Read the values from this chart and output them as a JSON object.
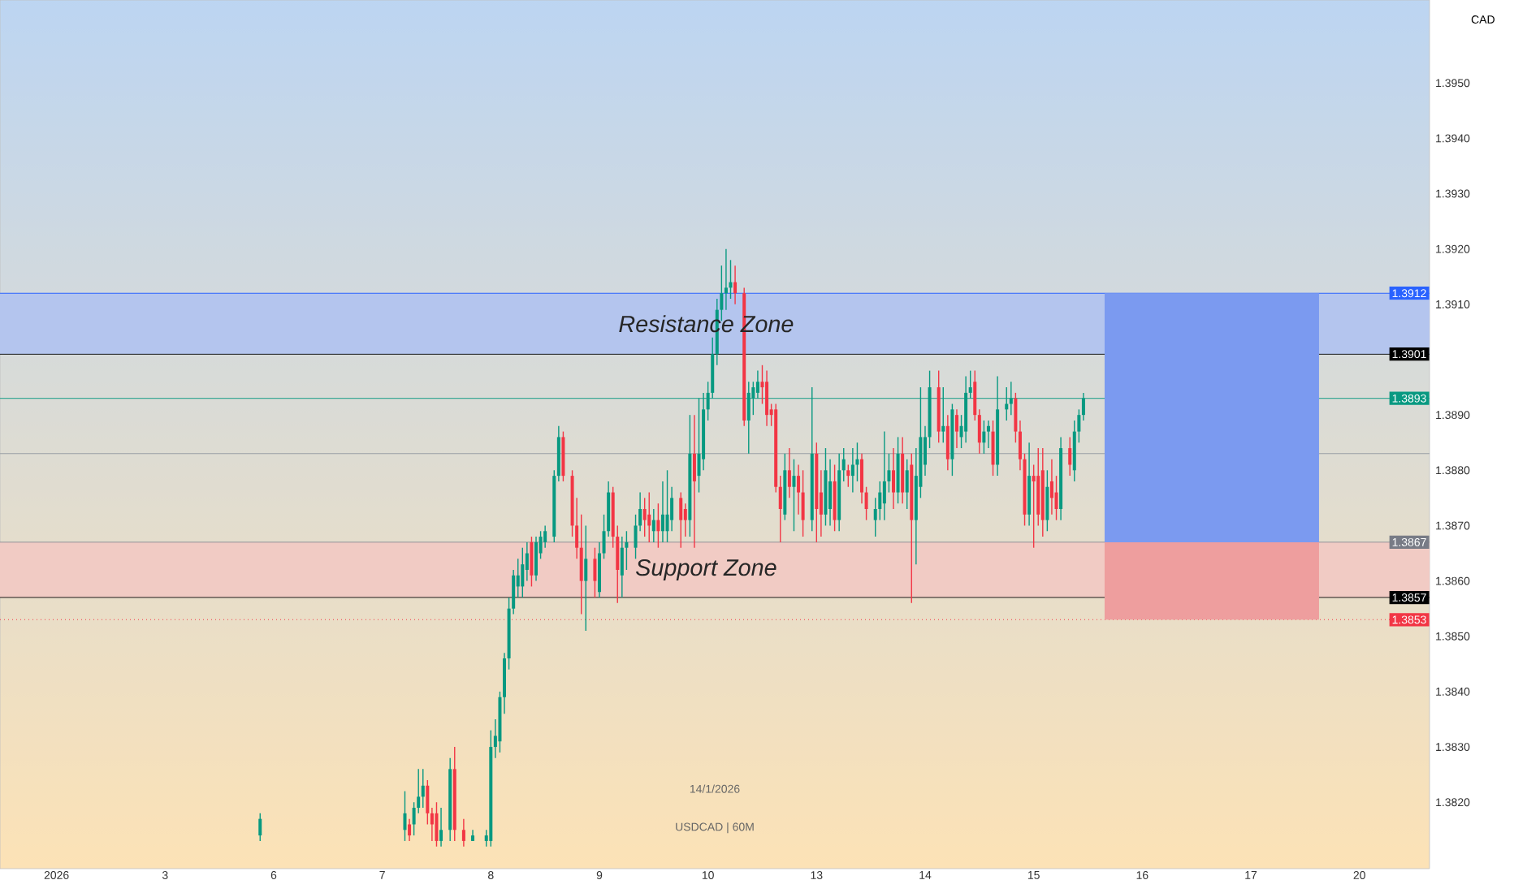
{
  "chart_data": {
    "type": "candlestick",
    "ylabel": "CAD",
    "categories": [
      null,
      null,
      null,
      null,
      null,
      null,
      null,
      null,
      null,
      null,
      null,
      null,
      "2026",
      null,
      null,
      null,
      null,
      null,
      null,
      null,
      null,
      null,
      null,
      null,
      null,
      null,
      null,
      null,
      null,
      null,
      null,
      null,
      null,
      null,
      null,
      null,
      "3",
      null,
      null,
      null,
      null,
      null,
      null,
      null,
      null,
      null,
      null,
      null,
      null,
      null,
      null,
      null,
      null,
      null,
      null,
      null,
      null,
      null,
      null,
      null,
      "6",
      null,
      null,
      null,
      null,
      null,
      null,
      null,
      null,
      null,
      null,
      null,
      null,
      null,
      null,
      null,
      null,
      null,
      null,
      null,
      null,
      null,
      null,
      null,
      "7",
      null,
      null,
      null,
      null,
      null,
      null,
      null,
      null,
      null,
      null,
      null,
      null,
      null,
      null,
      null,
      null,
      null,
      null,
      null,
      null,
      null,
      null,
      null,
      "8",
      null,
      null,
      null,
      null,
      null,
      null,
      null,
      null,
      null,
      null,
      null,
      null,
      null,
      null,
      null,
      null,
      null,
      null,
      null,
      null,
      null,
      null,
      null,
      "9",
      null,
      null,
      null,
      null,
      null,
      null,
      null,
      null,
      null,
      null,
      null,
      null,
      null,
      null,
      null,
      null,
      null,
      null,
      null,
      null,
      null,
      null,
      null,
      "10",
      null,
      null,
      null,
      null,
      null,
      null,
      null,
      null,
      null,
      null,
      null,
      null,
      null,
      null,
      null,
      null,
      null,
      null,
      null,
      null,
      null,
      null,
      null,
      "13",
      null,
      null,
      null,
      null,
      null,
      null,
      null,
      null,
      null,
      null,
      null,
      null,
      null,
      null,
      null,
      null,
      null,
      null,
      null,
      null,
      null,
      null,
      null,
      "14",
      null,
      null,
      null,
      null,
      null,
      null,
      null,
      null,
      null,
      null,
      null,
      null,
      null,
      null,
      null,
      null,
      null,
      null,
      null,
      null,
      null,
      null,
      null,
      "15",
      null,
      null,
      null,
      null,
      null,
      null,
      null,
      null,
      null,
      null,
      null,
      null,
      null,
      null,
      null,
      null,
      null,
      null,
      null,
      null,
      null,
      null,
      null,
      "16",
      null,
      null,
      null,
      null,
      null,
      null,
      null,
      null,
      null,
      null,
      null,
      null,
      null,
      null,
      null,
      null,
      null,
      null,
      null,
      null,
      null,
      null,
      null,
      "17",
      null,
      null,
      null,
      null,
      null,
      null,
      null,
      null,
      null,
      null,
      null,
      null,
      null,
      null,
      null,
      null,
      null,
      null,
      null,
      null,
      null,
      null,
      null,
      "20",
      null,
      null,
      null,
      null,
      null,
      null,
      null,
      null,
      null,
      null,
      null,
      null,
      null,
      null,
      null
    ],
    "ohlc": [
      null,
      null,
      null,
      null,
      null,
      null,
      null,
      null,
      null,
      null,
      null,
      null,
      null,
      null,
      null,
      null,
      null,
      null,
      null,
      null,
      null,
      null,
      null,
      null,
      null,
      null,
      null,
      null,
      null,
      null,
      null,
      null,
      null,
      null,
      null,
      null,
      null,
      null,
      null,
      null,
      null,
      null,
      null,
      null,
      null,
      null,
      null,
      null,
      null,
      null,
      null,
      null,
      null,
      null,
      null,
      null,
      null,
      [
        1.3814,
        1.3818,
        1.3813,
        1.3817
      ],
      null,
      null,
      null,
      null,
      null,
      null,
      null,
      null,
      null,
      null,
      null,
      null,
      null,
      null,
      null,
      null,
      null,
      null,
      null,
      null,
      null,
      null,
      null,
      null,
      null,
      null,
      null,
      null,
      null,
      null,
      null,
      [
        1.3815,
        1.3822,
        1.3813,
        1.3818
      ],
      [
        1.3816,
        1.3817,
        1.3813,
        1.3814
      ],
      [
        1.3816,
        1.382,
        1.3814,
        1.3819
      ],
      [
        1.3819,
        1.3826,
        1.3818,
        1.3821
      ],
      [
        1.3821,
        1.3826,
        1.3819,
        1.3823
      ],
      [
        1.3823,
        1.3824,
        1.3816,
        1.3818
      ],
      [
        1.3818,
        1.3819,
        1.3813,
        1.3816
      ],
      [
        1.3818,
        1.382,
        1.3812,
        1.3813
      ],
      [
        1.3813,
        1.3819,
        1.3812,
        1.3815
      ],
      null,
      [
        1.3815,
        1.3828,
        1.3813,
        1.3826
      ],
      [
        1.3826,
        1.383,
        1.3813,
        1.3815
      ],
      null,
      [
        1.3815,
        1.3817,
        1.3812,
        1.3813
      ],
      null,
      [
        1.3813,
        1.3815,
        1.3813,
        1.3814
      ],
      null,
      null,
      [
        1.3813,
        1.3815,
        1.3812,
        1.3814
      ],
      [
        1.3813,
        1.3833,
        1.3812,
        1.383
      ],
      [
        1.383,
        1.3835,
        1.3828,
        1.3832
      ],
      [
        1.3831,
        1.384,
        1.3829,
        1.3839
      ],
      [
        1.3839,
        1.3847,
        1.3836,
        1.3846
      ],
      [
        1.3846,
        1.3857,
        1.3844,
        1.3855
      ],
      [
        1.3855,
        1.3862,
        1.3854,
        1.3861
      ],
      [
        1.3859,
        1.3864,
        1.3857,
        1.3861
      ],
      [
        1.3859,
        1.3866,
        1.3857,
        1.3863
      ],
      [
        1.3862,
        1.3867,
        1.386,
        1.3865
      ],
      [
        1.3867,
        1.3868,
        1.3859,
        1.3861
      ],
      [
        1.3861,
        1.3868,
        1.386,
        1.3867
      ],
      [
        1.3865,
        1.3869,
        1.3864,
        1.3868
      ],
      [
        1.3867,
        1.387,
        1.3866,
        1.3869
      ],
      null,
      [
        1.3868,
        1.388,
        1.3867,
        1.3879
      ],
      [
        1.3879,
        1.3888,
        1.3878,
        1.3886
      ],
      [
        1.3886,
        1.3887,
        1.3878,
        1.3879
      ],
      null,
      [
        1.3879,
        1.388,
        1.3868,
        1.387
      ],
      [
        1.387,
        1.3875,
        1.3864,
        1.3866
      ],
      [
        1.3866,
        1.3872,
        1.3854,
        1.386
      ],
      [
        1.386,
        1.387,
        1.3851,
        1.3864
      ],
      null,
      [
        1.3864,
        1.3866,
        1.3857,
        1.386
      ],
      [
        1.3858,
        1.3867,
        1.3857,
        1.3865
      ],
      [
        1.3865,
        1.3872,
        1.3864,
        1.3869
      ],
      [
        1.3869,
        1.3878,
        1.3868,
        1.3876
      ],
      [
        1.3876,
        1.3877,
        1.3866,
        1.3868
      ],
      [
        1.3868,
        1.387,
        1.3856,
        1.3862
      ],
      [
        1.3861,
        1.3868,
        1.3857,
        1.3866
      ],
      [
        1.3866,
        1.3869,
        1.3862,
        1.3867
      ],
      null,
      [
        1.3866,
        1.3872,
        1.3864,
        1.387
      ],
      [
        1.387,
        1.3876,
        1.3869,
        1.3873
      ],
      [
        1.3873,
        1.3875,
        1.3868,
        1.3871
      ],
      [
        1.3872,
        1.3876,
        1.3867,
        1.387
      ],
      [
        1.3869,
        1.3873,
        1.3867,
        1.3871
      ],
      [
        1.3871,
        1.3874,
        1.3866,
        1.3869
      ],
      [
        1.3869,
        1.3878,
        1.3867,
        1.3872
      ],
      [
        1.3869,
        1.388,
        1.3867,
        1.3872
      ],
      [
        1.3871,
        1.3877,
        1.3869,
        1.3875
      ],
      null,
      [
        1.3875,
        1.3876,
        1.3866,
        1.3871
      ],
      [
        1.3873,
        1.3874,
        1.3868,
        1.3871
      ],
      [
        1.3871,
        1.389,
        1.3868,
        1.3883
      ],
      [
        1.3883,
        1.389,
        1.3866,
        1.3878
      ],
      [
        1.3879,
        1.3893,
        1.3876,
        1.3883
      ],
      [
        1.3882,
        1.3894,
        1.388,
        1.3891
      ],
      [
        1.3891,
        1.3896,
        1.3889,
        1.3894
      ],
      [
        1.3894,
        1.3904,
        1.3893,
        1.3901
      ],
      [
        1.3901,
        1.3911,
        1.3899,
        1.3909
      ],
      [
        1.3909,
        1.3917,
        1.3907,
        1.3912
      ],
      [
        1.3912,
        1.392,
        1.3909,
        1.3913
      ],
      [
        1.3913,
        1.3918,
        1.3911,
        1.3914
      ],
      [
        1.3914,
        1.3917,
        1.391,
        1.3912
      ],
      null,
      [
        1.3912,
        1.3913,
        1.3888,
        1.3889
      ],
      [
        1.3889,
        1.3896,
        1.3883,
        1.3894
      ],
      [
        1.3893,
        1.3896,
        1.389,
        1.3895
      ],
      [
        1.3894,
        1.3898,
        1.3893,
        1.3896
      ],
      [
        1.3896,
        1.3899,
        1.3892,
        1.3895
      ],
      [
        1.3896,
        1.3898,
        1.3888,
        1.389
      ],
      [
        1.3891,
        1.3892,
        1.3888,
        1.389
      ],
      [
        1.3891,
        1.3892,
        1.3876,
        1.3877
      ],
      [
        1.3877,
        1.3879,
        1.3867,
        1.3873
      ],
      [
        1.3872,
        1.3883,
        1.3871,
        1.388
      ],
      [
        1.388,
        1.3884,
        1.3875,
        1.3877
      ],
      [
        1.3877,
        1.3882,
        1.3869,
        1.3879
      ],
      [
        1.3879,
        1.3881,
        1.3872,
        1.3876
      ],
      [
        1.3876,
        1.388,
        1.3868,
        1.3871
      ],
      null,
      [
        1.3871,
        1.3895,
        1.3869,
        1.3883
      ],
      [
        1.3883,
        1.3885,
        1.3867,
        1.3873
      ],
      [
        1.3876,
        1.388,
        1.3868,
        1.3872
      ],
      [
        1.3872,
        1.3884,
        1.387,
        1.388
      ],
      [
        1.3873,
        1.3882,
        1.387,
        1.3878
      ],
      [
        1.3878,
        1.3881,
        1.3869,
        1.3871
      ],
      [
        1.3871,
        1.3883,
        1.3869,
        1.388
      ],
      [
        1.388,
        1.3884,
        1.3878,
        1.3882
      ],
      [
        1.388,
        1.3881,
        1.3877,
        1.3879
      ],
      [
        1.3879,
        1.3884,
        1.3876,
        1.3881
      ],
      [
        1.3881,
        1.3885,
        1.3878,
        1.3882
      ],
      [
        1.3882,
        1.3883,
        1.3874,
        1.3876
      ],
      [
        1.3876,
        1.3877,
        1.3871,
        1.3873
      ],
      null,
      [
        1.3871,
        1.3875,
        1.3868,
        1.3873
      ],
      [
        1.3873,
        1.3878,
        1.3871,
        1.3876
      ],
      [
        1.3874,
        1.3887,
        1.3871,
        1.3878
      ],
      [
        1.3878,
        1.3883,
        1.3876,
        1.388
      ],
      [
        1.388,
        1.3884,
        1.3873,
        1.3876
      ],
      [
        1.3876,
        1.3886,
        1.3874,
        1.3883
      ],
      [
        1.3883,
        1.3886,
        1.3874,
        1.3876
      ],
      [
        1.3876,
        1.3882,
        1.3873,
        1.388
      ],
      [
        1.3881,
        1.3883,
        1.3856,
        1.3871
      ],
      [
        1.3871,
        1.3884,
        1.3863,
        1.3879
      ],
      [
        1.3877,
        1.3895,
        1.3875,
        1.3886
      ],
      [
        1.3881,
        1.3888,
        1.3879,
        1.3886
      ],
      [
        1.3886,
        1.3898,
        1.3884,
        1.3895
      ],
      null,
      [
        1.3895,
        1.3898,
        1.3885,
        1.3887
      ],
      [
        1.3887,
        1.3895,
        1.3885,
        1.3888
      ],
      [
        1.3888,
        1.389,
        1.388,
        1.3882
      ],
      [
        1.3882,
        1.3892,
        1.3879,
        1.3891
      ],
      [
        1.389,
        1.3891,
        1.3884,
        1.3887
      ],
      [
        1.3886,
        1.389,
        1.3884,
        1.3888
      ],
      [
        1.3887,
        1.3897,
        1.3885,
        1.3894
      ],
      [
        1.3894,
        1.3898,
        1.3893,
        1.3895
      ],
      [
        1.3896,
        1.3898,
        1.3889,
        1.389
      ],
      [
        1.389,
        1.3891,
        1.3883,
        1.3885
      ],
      [
        1.3885,
        1.3889,
        1.3883,
        1.3887
      ],
      [
        1.3887,
        1.3889,
        1.3884,
        1.3888
      ],
      [
        1.3887,
        1.3889,
        1.3879,
        1.3881
      ],
      [
        1.3881,
        1.3897,
        1.3879,
        1.3891
      ],
      null,
      [
        1.3891,
        1.3895,
        1.3889,
        1.3892
      ],
      [
        1.3892,
        1.3896,
        1.389,
        1.3893
      ],
      [
        1.3893,
        1.3894,
        1.3885,
        1.3887
      ],
      [
        1.3887,
        1.3889,
        1.388,
        1.3882
      ],
      [
        1.3882,
        1.3883,
        1.387,
        1.3872
      ],
      [
        1.3872,
        1.3885,
        1.387,
        1.3879
      ],
      [
        1.3879,
        1.3881,
        1.3866,
        1.3878
      ],
      [
        1.3879,
        1.3884,
        1.387,
        1.3872
      ],
      [
        1.388,
        1.3884,
        1.3868,
        1.3871
      ],
      [
        1.3871,
        1.388,
        1.3869,
        1.3877
      ],
      [
        1.3878,
        1.3882,
        1.3872,
        1.3875
      ],
      [
        1.3876,
        1.3879,
        1.3871,
        1.3873
      ],
      [
        1.3873,
        1.3886,
        1.3871,
        1.3884
      ],
      null,
      [
        1.3884,
        1.3886,
        1.3879,
        1.3881
      ],
      [
        1.388,
        1.3889,
        1.3878,
        1.3887
      ],
      [
        1.3887,
        1.3891,
        1.3885,
        1.389
      ],
      [
        1.389,
        1.3894,
        1.3889,
        1.3893
      ],
      null,
      null,
      null,
      null,
      null,
      null,
      null,
      null,
      null,
      null,
      null,
      null,
      null,
      null,
      null,
      null,
      null,
      null,
      null,
      null,
      null,
      null,
      null,
      null,
      null,
      null,
      null,
      null,
      null,
      null,
      null,
      null,
      null,
      null,
      null,
      null,
      null,
      null,
      null,
      null,
      null,
      null,
      null,
      null,
      null,
      null,
      null,
      null,
      null,
      null,
      null,
      null,
      null,
      null,
      null,
      null,
      null,
      null,
      null,
      null,
      null,
      null,
      null,
      null,
      null,
      null,
      null,
      null,
      null,
      null,
      null,
      null,
      null,
      null,
      null,
      null
    ],
    "ylim": [
      1.3808,
      1.3965
    ],
    "yticks": [
      {
        "value": 1.382,
        "label": "1.3820"
      },
      {
        "value": 1.383,
        "label": "1.3830"
      },
      {
        "value": 1.384,
        "label": "1.3840"
      },
      {
        "value": 1.385,
        "label": "1.3850"
      },
      {
        "value": 1.386,
        "label": "1.3860"
      },
      {
        "value": 1.387,
        "label": "1.3870"
      },
      {
        "value": 1.388,
        "label": "1.3880"
      },
      {
        "value": 1.389,
        "label": "1.3890"
      },
      {
        "value": 1.391,
        "label": "1.3910"
      },
      {
        "value": 1.392,
        "label": "1.3920"
      },
      {
        "value": 1.393,
        "label": "1.3930"
      },
      {
        "value": 1.394,
        "label": "1.3940"
      },
      {
        "value": 1.395,
        "label": "1.3950"
      }
    ],
    "bands": [
      {
        "axis": "y",
        "from": 1.3901,
        "to": 1.3912,
        "label": "Resistance Zone",
        "color": "#b4c5ee"
      },
      {
        "axis": "y",
        "from": 1.3857,
        "to": 1.3867,
        "label": "Support Zone",
        "color": "#f1cbc4"
      }
    ],
    "ref_lines": [
      {
        "axis": "y",
        "value": 1.3912,
        "label": "1.3912",
        "color": "#2962ff",
        "line_style": "solid"
      },
      {
        "axis": "y",
        "value": 1.3901,
        "label": "1.3901",
        "color": "#000000",
        "line_style": "solid"
      },
      {
        "axis": "y",
        "value": 1.3893,
        "label": "1.3893",
        "color": "#089981",
        "line_style": "solid"
      },
      {
        "axis": "y",
        "value": 1.3883,
        "color": "#9aa0a6",
        "line_style": "solid"
      },
      {
        "axis": "y",
        "value": 1.3867,
        "label": "1.3867",
        "color": "#787b86",
        "line_style": "solid"
      },
      {
        "axis": "y",
        "value": 1.3857,
        "label": "1.3857",
        "color": "#000000",
        "line_style": "solid"
      },
      {
        "axis": "y",
        "value": 1.3853,
        "label": "1.3853",
        "color": "#f23645",
        "line_style": "dotted"
      }
    ],
    "annotations": [
      "14/1/2026",
      "USDCAD | 60M"
    ]
  }
}
